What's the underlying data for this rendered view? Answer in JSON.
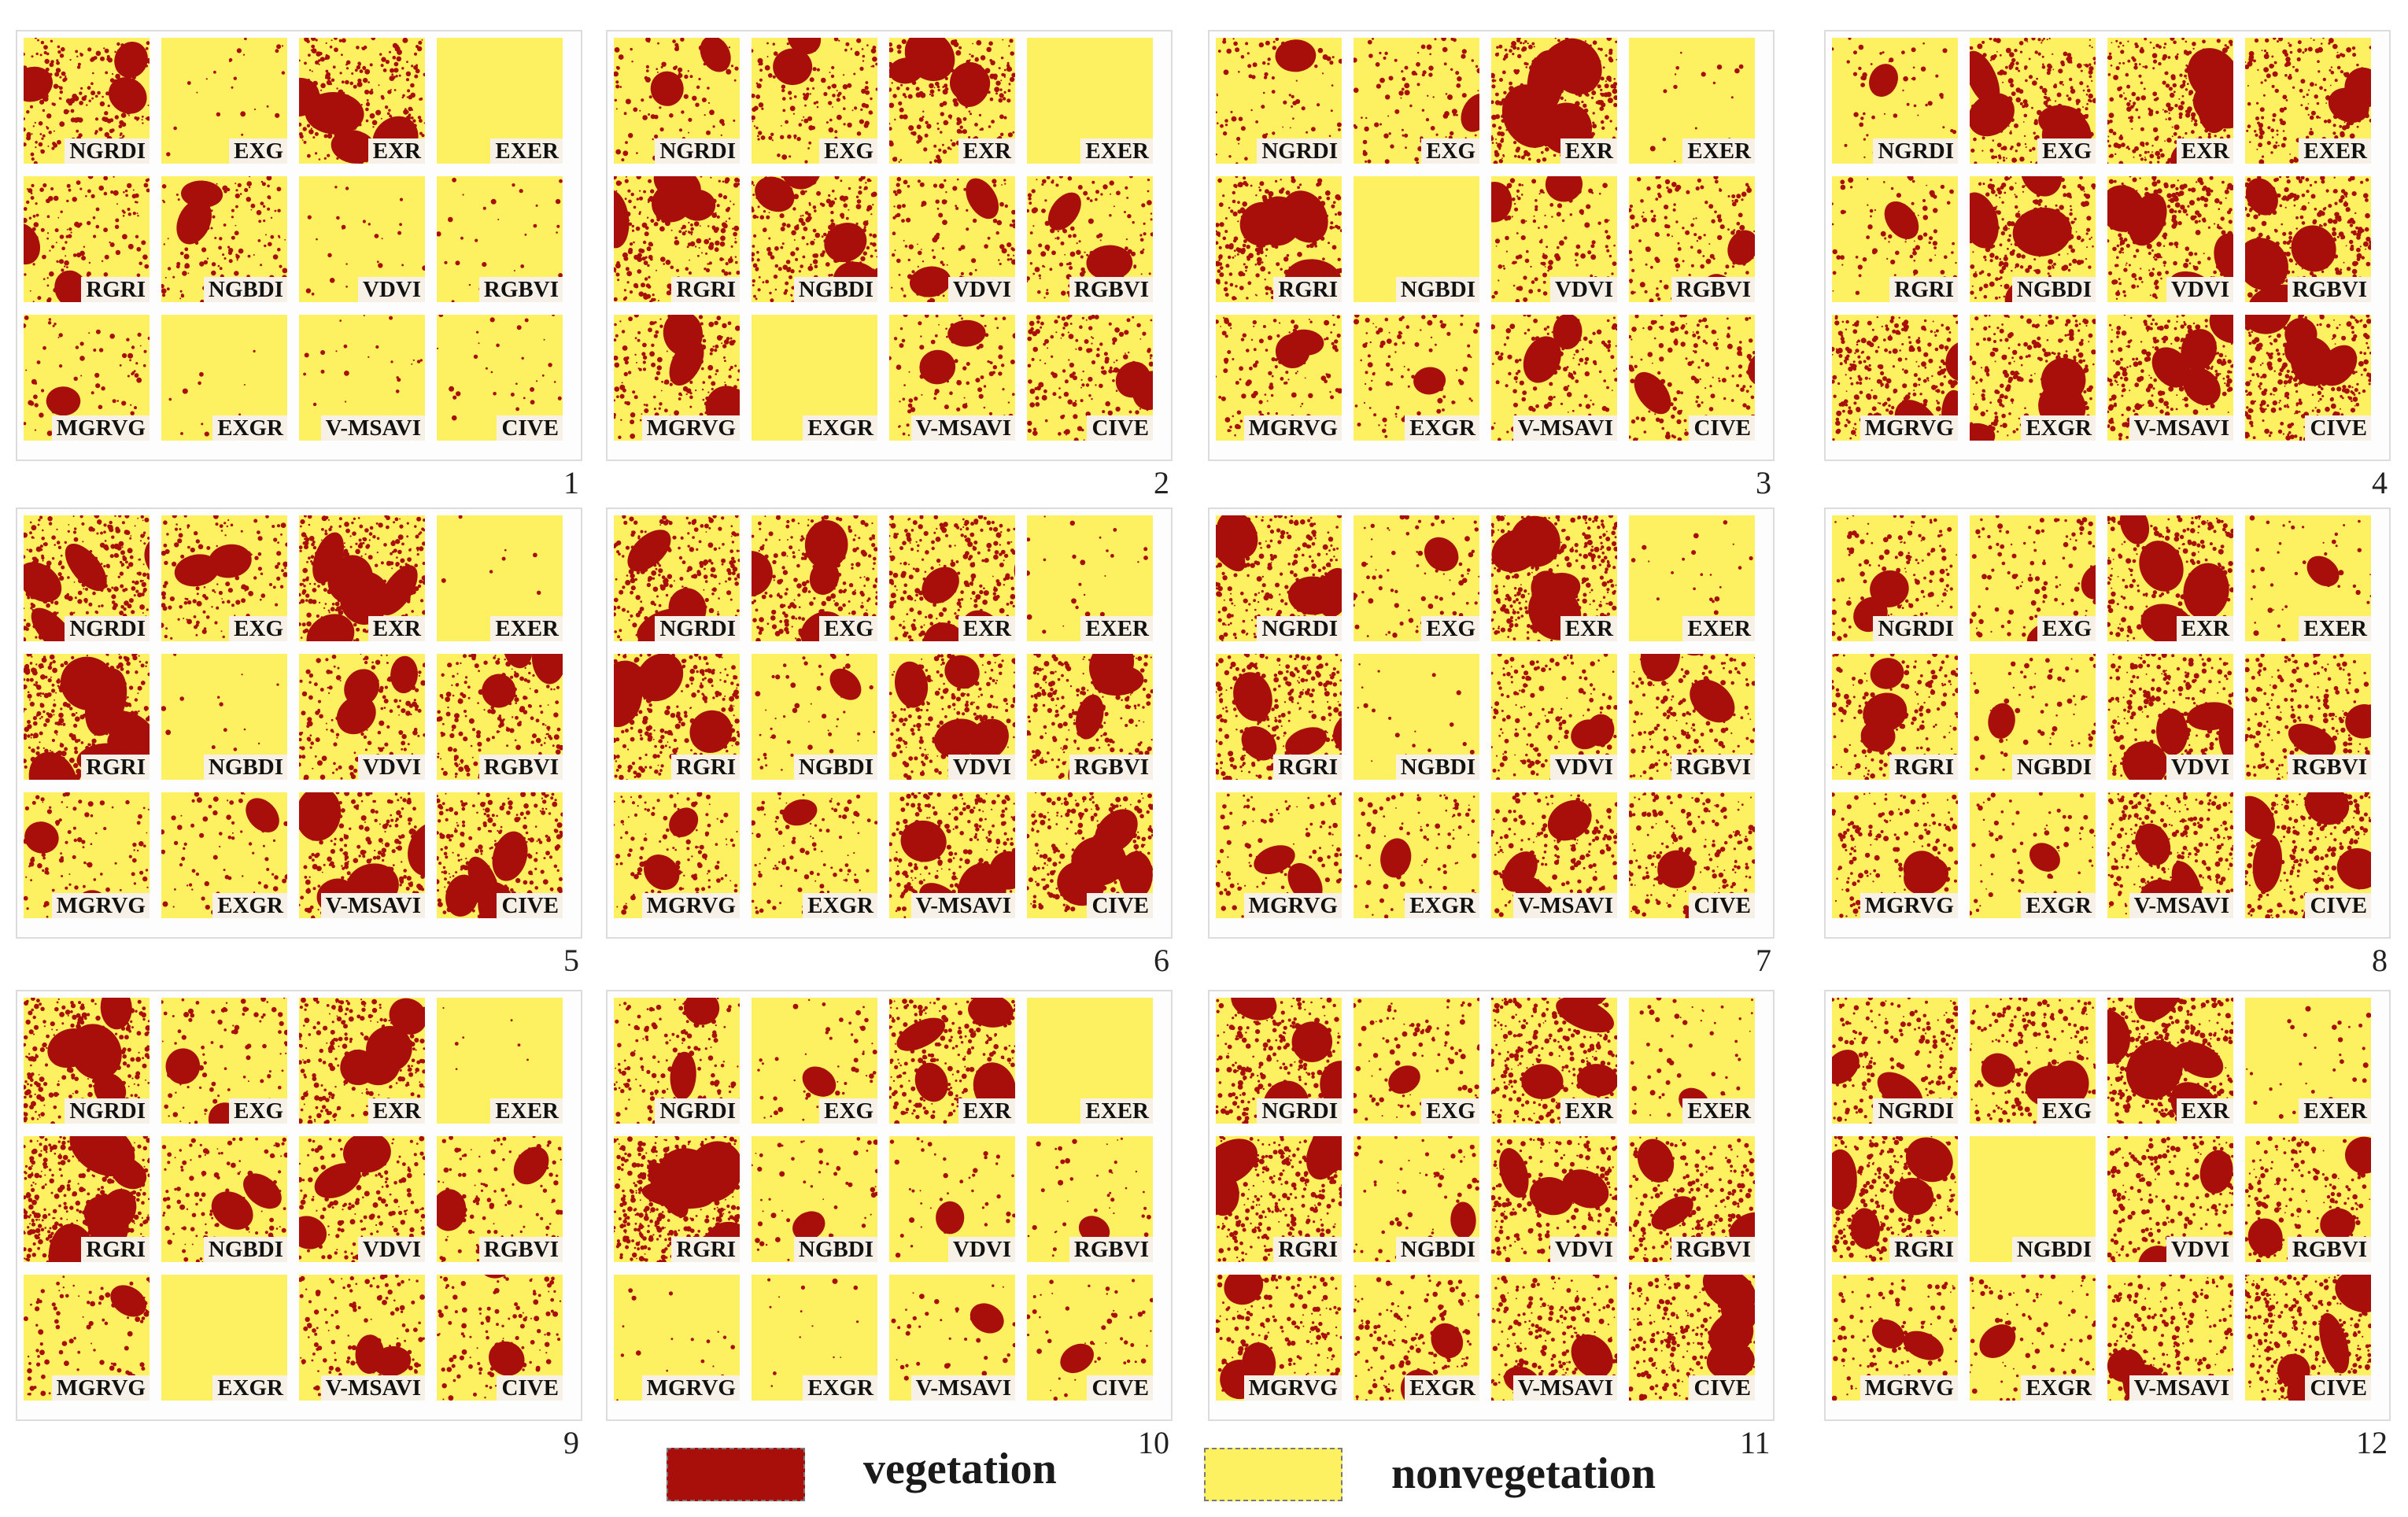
{
  "colors": {
    "vegetation": "#a80f0a",
    "nonvegetation": "#fdf061"
  },
  "panel_numbers": [
    "1",
    "2",
    "3",
    "4",
    "5",
    "6",
    "7",
    "8",
    "9",
    "10",
    "11",
    "12"
  ],
  "tile_labels": [
    "NGRDI",
    "EXG",
    "EXR",
    "EXER",
    "RGRI",
    "NGBDI",
    "VDVI",
    "RGBVI",
    "MGRVG",
    "EXGR",
    "V-MSAVI",
    "CIVE"
  ],
  "vegetation_density": [
    [
      0.45,
      0.05,
      0.55,
      0.0,
      0.3,
      0.3,
      0.05,
      0.06,
      0.15,
      0.02,
      0.05,
      0.06
    ],
    [
      0.22,
      0.32,
      0.5,
      0.0,
      0.55,
      0.5,
      0.25,
      0.32,
      0.45,
      0.0,
      0.22,
      0.35
    ],
    [
      0.18,
      0.2,
      0.65,
      0.03,
      0.6,
      0.0,
      0.28,
      0.3,
      0.28,
      0.2,
      0.32,
      0.35
    ],
    [
      0.12,
      0.55,
      0.6,
      0.4,
      0.2,
      0.58,
      0.55,
      0.62,
      0.58,
      0.52,
      0.6,
      0.68
    ],
    [
      0.58,
      0.32,
      0.68,
      0.02,
      0.8,
      0.03,
      0.38,
      0.42,
      0.22,
      0.15,
      0.5,
      0.5
    ],
    [
      0.52,
      0.5,
      0.56,
      0.06,
      0.58,
      0.12,
      0.52,
      0.5,
      0.3,
      0.22,
      0.55,
      0.58
    ],
    [
      0.55,
      0.18,
      0.78,
      0.04,
      0.55,
      0.04,
      0.35,
      0.38,
      0.25,
      0.2,
      0.4,
      0.42
    ],
    [
      0.3,
      0.22,
      0.55,
      0.1,
      0.38,
      0.14,
      0.58,
      0.42,
      0.35,
      0.14,
      0.6,
      0.52
    ],
    [
      0.62,
      0.22,
      0.52,
      0.02,
      0.8,
      0.25,
      0.38,
      0.25,
      0.2,
      0.0,
      0.3,
      0.25
    ],
    [
      0.35,
      0.1,
      0.58,
      0.0,
      0.88,
      0.12,
      0.08,
      0.08,
      0.04,
      0.03,
      0.08,
      0.1
    ],
    [
      0.55,
      0.2,
      0.62,
      0.1,
      0.6,
      0.12,
      0.45,
      0.48,
      0.4,
      0.3,
      0.48,
      0.55
    ],
    [
      0.4,
      0.4,
      0.72,
      0.06,
      0.55,
      0.0,
      0.4,
      0.38,
      0.22,
      0.18,
      0.42,
      0.6
    ]
  ],
  "legend": {
    "vegetation_label": "vegetation",
    "nonvegetation_label": "nonvegetation"
  }
}
